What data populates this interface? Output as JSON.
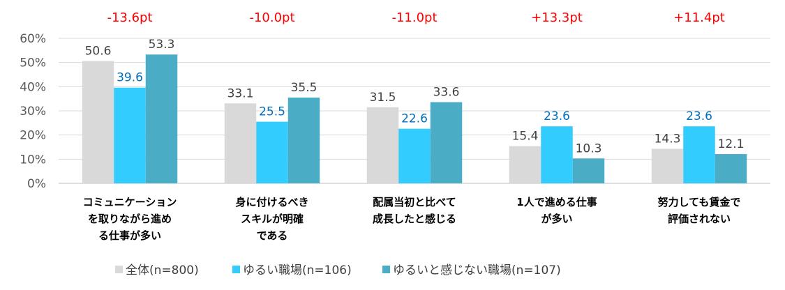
{
  "chart_data": {
    "type": "bar",
    "categories": [
      [
        "コミュニケーション",
        "を取りながら進め",
        "る仕事が多い"
      ],
      [
        "身に付けるべき",
        "スキルが明確",
        "である"
      ],
      [
        "配属当初と比べて",
        "成長したと感じる"
      ],
      [
        "1人で進める仕事",
        "が多い"
      ],
      [
        "努力しても賃金で",
        "評価されない"
      ]
    ],
    "series": [
      {
        "name": "全体(n=800)",
        "color": "#d9d9d9",
        "label_color": "#404040",
        "values": [
          50.6,
          33.1,
          31.5,
          15.4,
          14.3
        ]
      },
      {
        "name": "ゆるい職場(n=106)",
        "color": "#33ccff",
        "label_color": "#0070c0",
        "values": [
          39.6,
          25.5,
          22.6,
          23.6,
          23.6
        ]
      },
      {
        "name": "ゆるいと感じない職場(n=107)",
        "color": "#4bacc6",
        "label_color": "#404040",
        "values": [
          53.3,
          35.5,
          33.6,
          10.3,
          12.1
        ]
      }
    ],
    "differences": [
      "-13.6pt",
      "-10.0pt",
      "-11.0pt",
      "+13.3pt",
      "+11.4pt"
    ],
    "y_ticks": [
      "0%",
      "10%",
      "20%",
      "30%",
      "40%",
      "50%",
      "60%"
    ],
    "ylim": [
      0,
      60
    ],
    "grid": true,
    "legend_position": "bottom"
  }
}
